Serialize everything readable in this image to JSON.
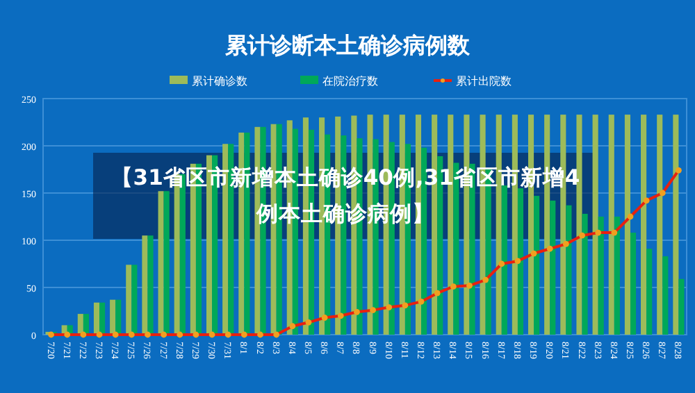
{
  "chart_data": {
    "type": "bar",
    "title": "累计诊断本土确诊病例数",
    "categories": [
      "7/20",
      "7/21",
      "7/22",
      "7/23",
      "7/24",
      "7/25",
      "7/26",
      "7/27",
      "7/28",
      "7/29",
      "7/30",
      "7/31",
      "8/1",
      "8/2",
      "8/3",
      "8/4",
      "8/5",
      "8/6",
      "8/7",
      "8/8",
      "8/9",
      "8/10",
      "8/11",
      "8/12",
      "8/13",
      "8/14",
      "8/15",
      "8/16",
      "8/17",
      "8/18",
      "8/19",
      "8/20",
      "8/21",
      "8/22",
      "8/23",
      "8/24",
      "8/25",
      "8/26",
      "8/27",
      "8/28"
    ],
    "series": [
      {
        "name": "累计确诊数",
        "color": "#9dbb5a",
        "values": [
          3,
          10,
          22,
          34,
          37,
          74,
          105,
          152,
          170,
          181,
          190,
          202,
          214,
          220,
          223,
          227,
          230,
          230,
          231,
          232,
          233,
          233,
          233,
          233,
          233,
          233,
          233,
          233,
          233,
          233,
          233,
          233,
          233,
          233,
          233,
          233,
          233,
          233,
          233,
          233
        ]
      },
      {
        "name": "在院治疗数",
        "color": "#00a859",
        "values": [
          3,
          10,
          22,
          34,
          37,
          74,
          105,
          152,
          170,
          181,
          190,
          202,
          214,
          220,
          223,
          218,
          217,
          212,
          211,
          208,
          207,
          204,
          202,
          198,
          189,
          182,
          181,
          175,
          158,
          155,
          147,
          142,
          137,
          128,
          125,
          125,
          108,
          91,
          83,
          59
        ]
      },
      {
        "name": "累计出院数",
        "type": "line",
        "color": "#e8210f",
        "marker": "circle",
        "values": [
          0,
          0,
          0,
          0,
          0,
          0,
          0,
          0,
          0,
          0,
          0,
          0,
          0,
          0,
          0,
          9,
          13,
          18,
          20,
          24,
          26,
          29,
          31,
          35,
          44,
          51,
          52,
          58,
          75,
          78,
          86,
          91,
          96,
          105,
          108,
          108,
          125,
          142,
          150,
          174
        ]
      }
    ],
    "ylim": [
      0,
      250
    ],
    "yticks": [
      0,
      50,
      100,
      150,
      200,
      250
    ],
    "grid": "y",
    "legend": "top",
    "annotations": [
      "【31省区市新增本土确诊40例,31省区市新增4例本土确诊病例】"
    ]
  }
}
